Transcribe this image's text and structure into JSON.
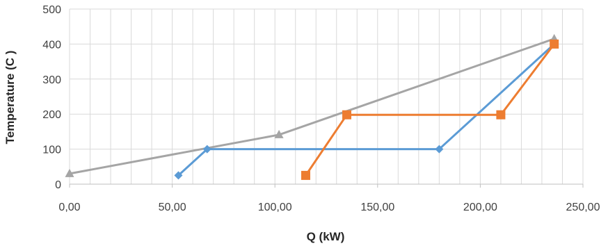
{
  "chart_data": {
    "type": "scatter",
    "xlabel": "Q (kW)",
    "ylabel": "Temperature (C )",
    "xlim": [
      0,
      250
    ],
    "ylim": [
      0,
      500
    ],
    "x_ticks": [
      0,
      50,
      100,
      150,
      200,
      250
    ],
    "x_tick_labels": [
      "0,00",
      "50,00",
      "100,00",
      "150,00",
      "200,00",
      "250,00"
    ],
    "y_ticks": [
      0,
      100,
      200,
      300,
      400,
      500
    ],
    "y_tick_labels": [
      "0",
      "100",
      "200",
      "300",
      "400",
      "500"
    ],
    "grid": true,
    "minor_x_grid_step": 10,
    "legend": "none",
    "series": [
      {
        "color": "#a5a5a5",
        "marker": "triangle",
        "points": [
          [
            0,
            30
          ],
          [
            102,
            141
          ],
          [
            236,
            415
          ]
        ]
      },
      {
        "color": "#5b9bd5",
        "marker": "diamond",
        "points": [
          [
            53,
            25
          ],
          [
            67,
            100
          ],
          [
            180,
            100
          ],
          [
            236,
            400
          ]
        ]
      },
      {
        "color": "#ed7d31",
        "marker": "square",
        "points": [
          [
            115,
            25
          ],
          [
            135,
            198
          ],
          [
            210,
            198
          ],
          [
            236,
            400
          ]
        ]
      }
    ]
  }
}
